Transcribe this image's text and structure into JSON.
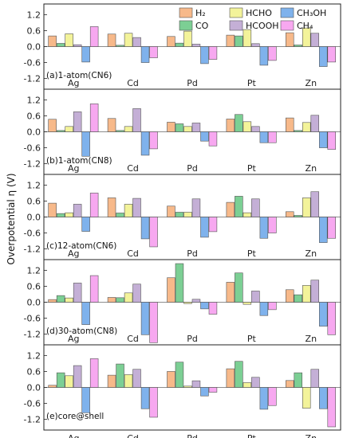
{
  "chart_data": {
    "type": "bar",
    "ylabel": "Overpotential η (V)",
    "categories": [
      "Ag",
      "Cd",
      "Pd",
      "Pt",
      "Zn"
    ],
    "series_names": [
      "H₂",
      "CO",
      "HCHO",
      "HCOOH",
      "CH₃OH",
      "CH₄"
    ],
    "colors": [
      "#f7b98a",
      "#7ccf94",
      "#f3f39a",
      "#c4afd6",
      "#7fb2ec",
      "#f7a8f0"
    ],
    "ylim": [
      -1.6,
      1.6
    ],
    "yticks": [
      -1.2,
      -0.6,
      0.0,
      0.6,
      1.2
    ],
    "panels": [
      {
        "label": "(a)1-atom(CN6)",
        "values": {
          "Ag": [
            0.4,
            0.12,
            0.48,
            0.07,
            -0.58,
            0.75
          ],
          "Cd": [
            0.47,
            0.05,
            0.5,
            0.34,
            -0.6,
            -0.42
          ],
          "Pd": [
            0.38,
            0.13,
            0.58,
            0.09,
            -0.64,
            -0.48
          ],
          "Pt": [
            0.43,
            0.4,
            0.64,
            0.11,
            -0.7,
            -0.52
          ],
          "Zn": [
            0.52,
            0.06,
            0.7,
            0.5,
            -0.75,
            -0.58
          ]
        }
      },
      {
        "label": "(b)1-atom(CN8)",
        "values": {
          "Ag": [
            0.47,
            0.05,
            0.2,
            0.75,
            -0.92,
            1.05
          ],
          "Cd": [
            0.5,
            0.05,
            0.2,
            0.87,
            -0.88,
            -0.64
          ],
          "Pd": [
            0.36,
            0.3,
            0.2,
            0.33,
            -0.35,
            -0.53
          ],
          "Pt": [
            0.48,
            0.65,
            0.38,
            0.2,
            -0.41,
            -0.41
          ],
          "Zn": [
            0.52,
            0.05,
            0.35,
            0.62,
            -0.6,
            -0.66
          ]
        }
      },
      {
        "label": "(c)12-atom(CN6)",
        "values": {
          "Ag": [
            0.52,
            0.13,
            0.16,
            0.48,
            -0.54,
            0.9
          ],
          "Cd": [
            0.72,
            0.15,
            0.48,
            0.7,
            -0.82,
            -1.12
          ],
          "Pd": [
            0.41,
            0.18,
            0.18,
            0.68,
            -0.76,
            -0.55
          ],
          "Pt": [
            0.55,
            0.78,
            0.16,
            0.68,
            -0.8,
            -0.6
          ],
          "Zn": [
            0.2,
            0.06,
            0.72,
            0.95,
            -0.96,
            -0.8
          ]
        }
      },
      {
        "label": "(d)30-atom(CN8)",
        "values": {
          "Ag": [
            0.1,
            0.25,
            0.16,
            0.72,
            -0.84,
            1.0
          ],
          "Cd": [
            0.18,
            0.17,
            0.35,
            0.68,
            -1.22,
            -1.52
          ],
          "Pd": [
            0.92,
            1.45,
            -0.05,
            0.11,
            -0.25,
            -0.45
          ],
          "Pt": [
            0.75,
            1.1,
            -0.08,
            0.42,
            -0.5,
            -0.28
          ],
          "Zn": [
            0.47,
            0.28,
            0.63,
            0.83,
            -0.9,
            -1.22
          ]
        }
      },
      {
        "label": "(e)core@shell",
        "values": {
          "Ag": [
            0.08,
            0.55,
            0.44,
            0.82,
            -0.95,
            1.08
          ],
          "Cd": [
            0.46,
            0.88,
            0.48,
            0.68,
            -0.8,
            -1.12
          ],
          "Pd": [
            0.6,
            0.95,
            0.05,
            0.25,
            -0.32,
            -0.18
          ],
          "Pt": [
            0.7,
            0.98,
            0.18,
            0.38,
            -0.82,
            -0.68
          ],
          "Zn": [
            0.26,
            0.55,
            -0.78,
            0.68,
            -0.8,
            -1.48
          ]
        }
      }
    ]
  }
}
